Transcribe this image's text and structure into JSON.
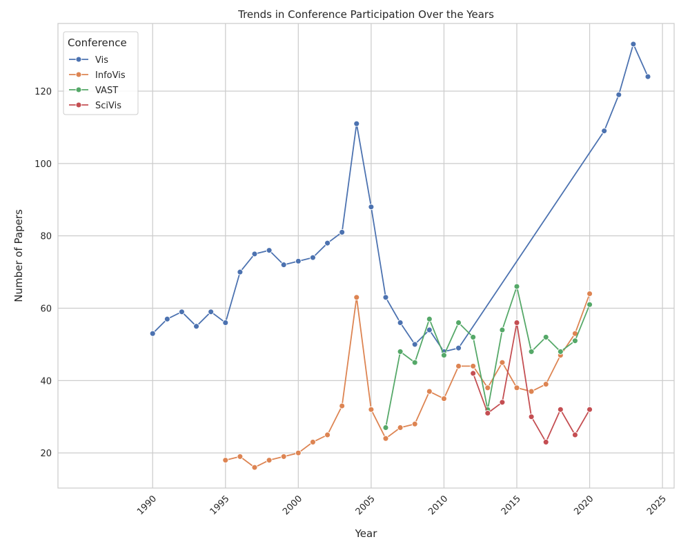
{
  "chart_data": {
    "type": "line",
    "title": "Trends in Conference Participation Over the Years",
    "xlabel": "Year",
    "ylabel": "Number of Papers",
    "xlim": [
      1983.5,
      2025.8
    ],
    "ylim": [
      10.3,
      138.7
    ],
    "x_ticks": [
      1990,
      1995,
      2000,
      2005,
      2010,
      2015,
      2020,
      2025
    ],
    "y_ticks": [
      20,
      40,
      60,
      80,
      100,
      120
    ],
    "grid": true,
    "legend": {
      "title": "Conference",
      "placement": "top-left"
    },
    "series": [
      {
        "name": "Vis",
        "color": "#4c72b0",
        "x": [
          1990,
          1991,
          1992,
          1993,
          1994,
          1995,
          1996,
          1997,
          1998,
          1999,
          2000,
          2001,
          2002,
          2003,
          2004,
          2005,
          2006,
          2007,
          2008,
          2009,
          2010,
          2011,
          2021,
          2022,
          2023,
          2024
        ],
        "values": [
          53,
          57,
          59,
          55,
          59,
          56,
          70,
          75,
          76,
          72,
          73,
          74,
          78,
          81,
          111,
          88,
          63,
          56,
          50,
          54,
          48,
          49,
          109,
          119,
          133,
          124
        ]
      },
      {
        "name": "InfoVis",
        "color": "#dd8452",
        "x": [
          1995,
          1996,
          1997,
          1998,
          1999,
          2000,
          2001,
          2002,
          2003,
          2004,
          2005,
          2006,
          2007,
          2008,
          2009,
          2010,
          2011,
          2012,
          2013,
          2014,
          2015,
          2016,
          2017,
          2018,
          2019,
          2020
        ],
        "values": [
          18,
          19,
          16,
          18,
          19,
          20,
          23,
          25,
          33,
          63,
          32,
          24,
          27,
          28,
          37,
          35,
          44,
          44,
          38,
          45,
          38,
          37,
          39,
          47,
          53,
          64
        ]
      },
      {
        "name": "VAST",
        "color": "#55a868",
        "x": [
          2006,
          2007,
          2008,
          2009,
          2010,
          2011,
          2012,
          2013,
          2014,
          2015,
          2016,
          2017,
          2018,
          2019,
          2020
        ],
        "values": [
          27,
          48,
          45,
          57,
          47,
          56,
          52,
          32,
          54,
          66,
          48,
          52,
          48,
          51,
          61
        ]
      },
      {
        "name": "SciVis",
        "color": "#c44e52",
        "x": [
          2012,
          2013,
          2014,
          2015,
          2016,
          2017,
          2018,
          2019,
          2020
        ],
        "values": [
          42,
          31,
          34,
          56,
          30,
          23,
          32,
          25,
          32
        ]
      }
    ]
  }
}
